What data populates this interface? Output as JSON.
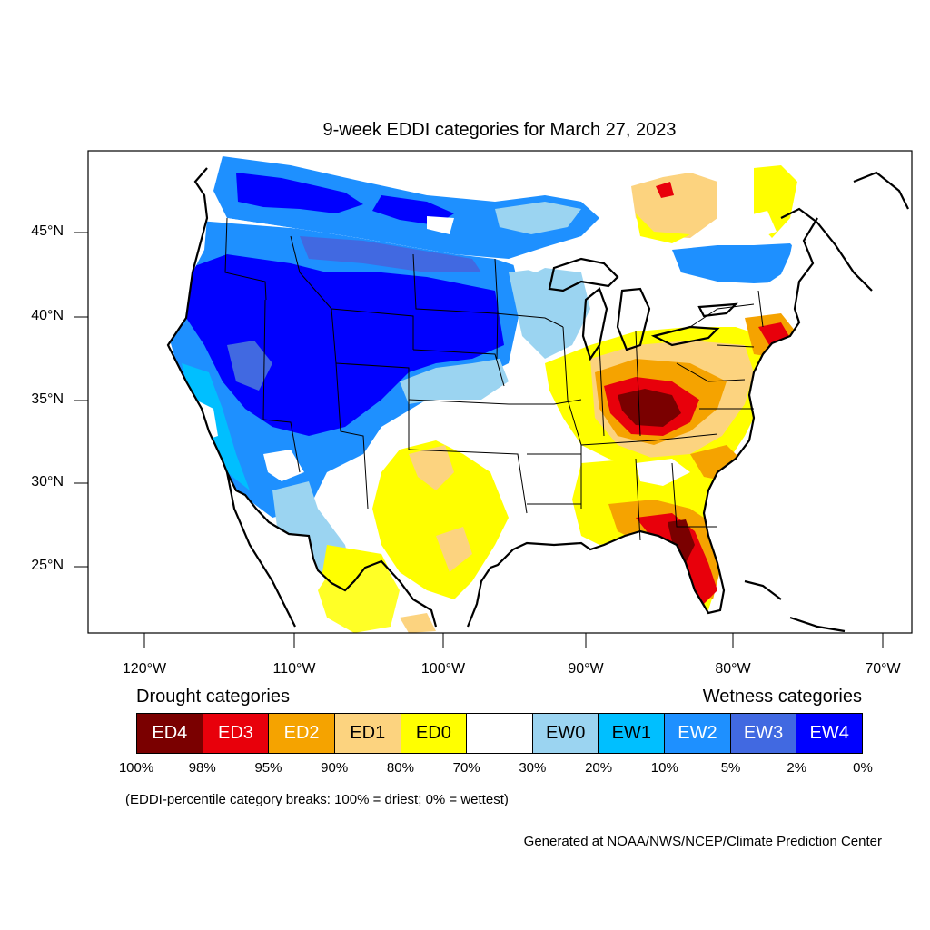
{
  "title": "9-week EDDI categories for March 27, 2023",
  "map": {
    "lat_labels": [
      "45°N",
      "40°N",
      "35°N",
      "30°N",
      "25°N"
    ],
    "lon_labels": [
      "120°W",
      "110°W",
      "100°W",
      "90°W",
      "80°W",
      "70°W"
    ],
    "colors": {
      "ED4": "#7a0000",
      "ED3": "#e8000b",
      "ED2": "#f5a300",
      "ED1": "#fcd37f",
      "ED0": "#ffff00",
      "neutral": "#ffffff",
      "EW0": "#9bd4f1",
      "EW1": "#00bfff",
      "EW2": "#1e90ff",
      "EW3": "#4169e1",
      "EW4": "#0000ff"
    }
  },
  "legend": {
    "drought_label": "Drought categories",
    "wetness_label": "Wetness categories",
    "categories": [
      {
        "label": "ED4",
        "color": "#7a0000",
        "text_color": "#ffffff"
      },
      {
        "label": "ED3",
        "color": "#e8000b",
        "text_color": "#ffffff"
      },
      {
        "label": "ED2",
        "color": "#f5a300",
        "text_color": "#ffffff"
      },
      {
        "label": "ED1",
        "color": "#fcd37f",
        "text_color": "#000000"
      },
      {
        "label": "ED0",
        "color": "#ffff00",
        "text_color": "#000000"
      },
      {
        "label": "",
        "color": "#ffffff",
        "text_color": "#000000"
      },
      {
        "label": "EW0",
        "color": "#9bd4f1",
        "text_color": "#000000"
      },
      {
        "label": "EW1",
        "color": "#00bfff",
        "text_color": "#000000"
      },
      {
        "label": "EW2",
        "color": "#1e90ff",
        "text_color": "#ffffff"
      },
      {
        "label": "EW3",
        "color": "#4169e1",
        "text_color": "#ffffff"
      },
      {
        "label": "EW4",
        "color": "#0000ff",
        "text_color": "#ffffff"
      }
    ],
    "breaks": [
      "100%",
      "98%",
      "95%",
      "90%",
      "80%",
      "70%",
      "30%",
      "20%",
      "10%",
      "5%",
      "2%",
      "0%"
    ]
  },
  "note": "(EDDI-percentile category breaks: 100% = driest; 0% = wettest)",
  "credit": "Generated at NOAA/NWS/NCEP/Climate Prediction Center"
}
